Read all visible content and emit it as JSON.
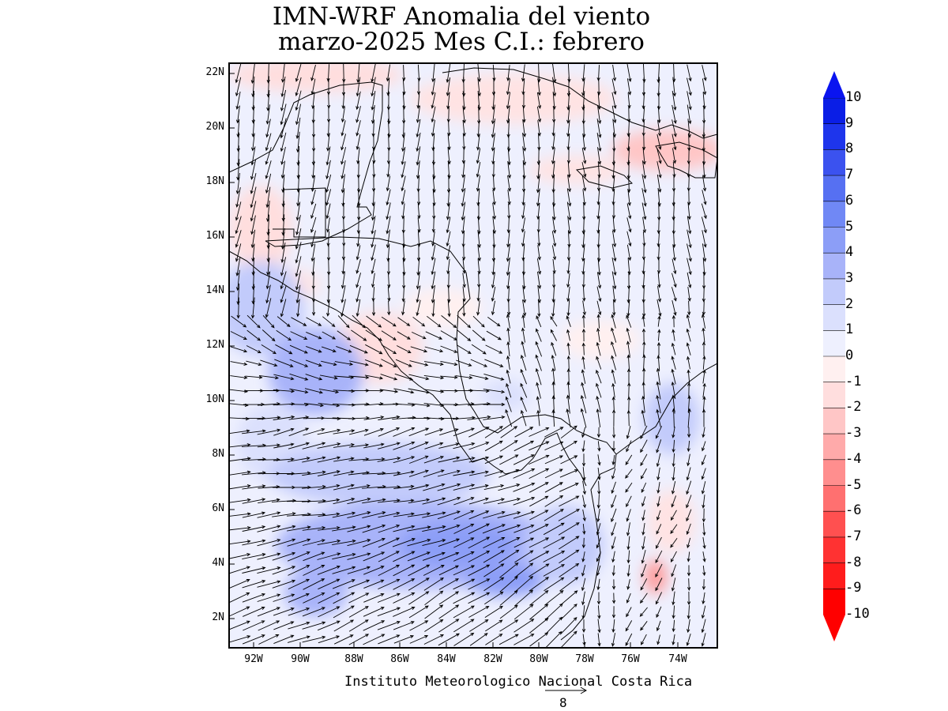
{
  "title": {
    "line1": "IMN-WRF Anomalia del viento",
    "line2": "marzo-2025 Mes C.I.: febrero"
  },
  "map": {
    "lat_labels": [
      "22N",
      "20N",
      "18N",
      "16N",
      "14N",
      "12N",
      "10N",
      "8N",
      "6N",
      "4N",
      "2N"
    ],
    "lon_labels": [
      "92W",
      "90W",
      "88W",
      "86W",
      "84W",
      "82W",
      "80W",
      "78W",
      "76W",
      "74W"
    ],
    "lat_range": [
      1,
      22.5
    ],
    "lon_range": [
      -93.3,
      -72.4
    ]
  },
  "colorbar": {
    "labels": [
      "10",
      "9",
      "8",
      "7",
      "6",
      "5",
      "4",
      "3",
      "2",
      "1",
      "0",
      "-1",
      "-2",
      "-3",
      "-4",
      "-5",
      "-6",
      "-7",
      "-8",
      "-9",
      "-10"
    ],
    "colors": [
      "#0a1ee6",
      "#1e35ec",
      "#3b52ef",
      "#5670f2",
      "#7088f5",
      "#8c9ef7",
      "#a8b3f9",
      "#c2cbfb",
      "#dbe0fd",
      "#eef0fe",
      "#fff0f0",
      "#ffdede",
      "#ffc6c6",
      "#ffaaaa",
      "#ff8e8e",
      "#ff7070",
      "#ff5050",
      "#ff3232",
      "#ff1c1c",
      "#ff0000"
    ],
    "top_color": "#0a14f0",
    "bottom_color": "#ff0000"
  },
  "credit": "Instituto Meteorologico Nacional Costa Rica",
  "reference_vector": {
    "value": "8"
  }
}
